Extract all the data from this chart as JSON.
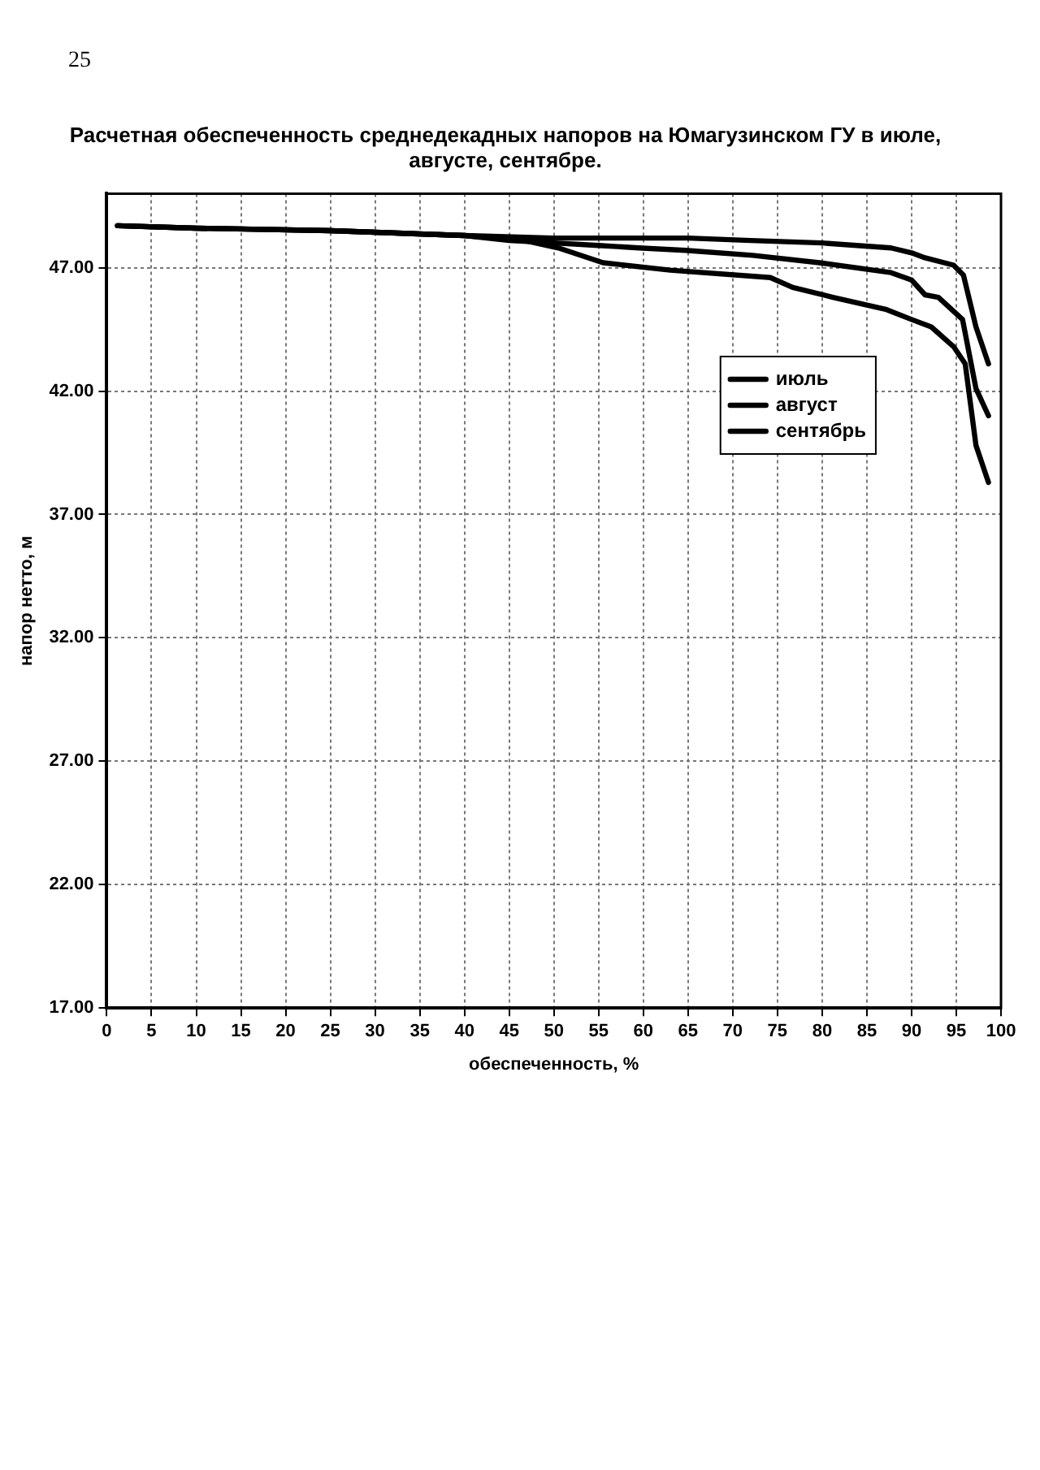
{
  "chart_data": {
    "type": "line",
    "title": "Расчетная обеспеченность среднедекадных напоров на Юмагузинском ГУ в июле, августе, сентябре.",
    "xlabel": "обеспеченность, %",
    "ylabel": "напор нетто, м",
    "annotations": [
      "25"
    ],
    "xlim": [
      0,
      100
    ],
    "xticks": [
      0,
      5,
      10,
      15,
      20,
      25,
      30,
      35,
      40,
      45,
      50,
      55,
      60,
      65,
      70,
      75,
      80,
      85,
      90,
      95,
      100
    ],
    "ylim": [
      17,
      50
    ],
    "yticks": [
      {
        "value": 17,
        "label": "17.00"
      },
      {
        "value": 22,
        "label": "22.00"
      },
      {
        "value": 27,
        "label": "27.00"
      },
      {
        "value": 32,
        "label": "32.00"
      },
      {
        "value": 37,
        "label": "37.00"
      },
      {
        "value": 42,
        "label": "42.00"
      },
      {
        "value": 47,
        "label": "47.00"
      }
    ],
    "grid": true,
    "legend": "top right",
    "marker": "none",
    "line_style": "solid",
    "series": [
      {
        "name": "июль",
        "color": "#000000",
        "x": [
          1.2,
          10,
          25,
          40,
          50,
          60,
          65,
          72,
          80,
          87.7,
          90,
          91.5,
          94.7,
          95.8,
          97.2,
          98.6
        ],
        "values": [
          48.7,
          48.6,
          48.5,
          48.3,
          48.2,
          48.2,
          48.2,
          48.1,
          48.0,
          47.8,
          47.6,
          47.4,
          47.1,
          46.7,
          44.6,
          43.1
        ]
      },
      {
        "name": "август",
        "color": "#000000",
        "x": [
          1.2,
          10,
          25,
          40,
          45,
          50,
          55,
          59.5,
          64.7,
          72.2,
          79.7,
          87.7,
          90,
          91.5,
          93,
          95.7,
          97.2,
          98.6
        ],
        "values": [
          48.7,
          48.6,
          48.5,
          48.3,
          48.1,
          48.0,
          47.9,
          47.8,
          47.7,
          47.5,
          47.2,
          46.8,
          46.5,
          45.9,
          45.8,
          44.9,
          42.1,
          41.0
        ]
      },
      {
        "name": "сентябрь",
        "color": "#000000",
        "x": [
          1.2,
          10,
          25,
          40,
          46.7,
          50.5,
          55.5,
          63,
          74.2,
          76.7,
          81.2,
          87.2,
          90,
          92.2,
          94.7,
          96,
          97.2,
          98.6
        ],
        "values": [
          48.7,
          48.6,
          48.5,
          48.3,
          48.1,
          47.8,
          47.2,
          46.9,
          46.6,
          46.2,
          45.8,
          45.3,
          44.9,
          44.6,
          43.8,
          43.1,
          39.8,
          38.3
        ]
      }
    ]
  }
}
